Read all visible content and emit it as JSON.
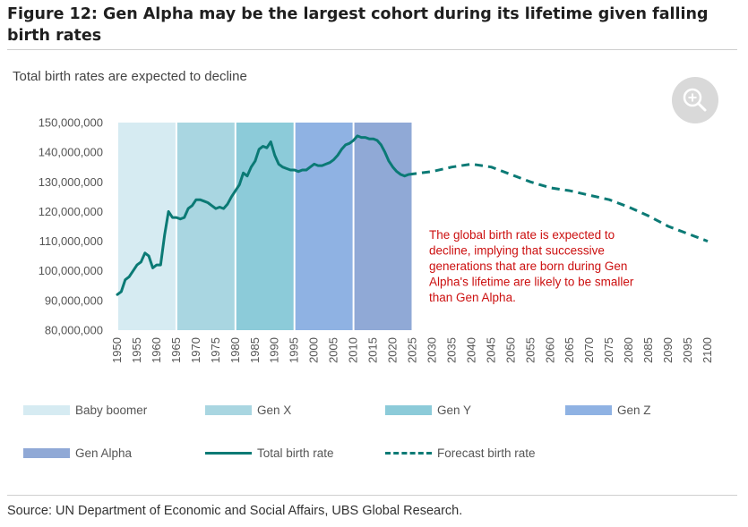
{
  "figure": {
    "title": "Figure 12: Gen Alpha may be the largest cohort during its lifetime given falling birth rates",
    "subtitle": "Total birth rates are expected to decline",
    "source": "Source: UN Department of Economic and Social Affairs, UBS Global Research.",
    "zoom_icon": "zoom-in-icon"
  },
  "chart_data": {
    "type": "line",
    "ylim": [
      80000000,
      150000000
    ],
    "xlim": [
      1950,
      2100
    ],
    "y_ticks": [
      "80,000,000",
      "90,000,000",
      "100,000,000",
      "110,000,000",
      "120,000,000",
      "130,000,000",
      "140,000,000",
      "150,000,000"
    ],
    "x_ticks": [
      "1950",
      "1955",
      "1960",
      "1965",
      "1970",
      "1975",
      "1980",
      "1985",
      "1990",
      "1995",
      "2000",
      "2005",
      "2010",
      "2015",
      "2020",
      "2025",
      "2030",
      "2035",
      "2040",
      "2045",
      "2050",
      "2055",
      "2060",
      "2065",
      "2070",
      "2075",
      "2080",
      "2085",
      "2090",
      "2095",
      "2100"
    ],
    "grid": false,
    "legend_position": "bottom",
    "generations": [
      {
        "name": "Baby boomer",
        "start": 1950,
        "end": 1964,
        "color": "#d6ebf2"
      },
      {
        "name": "Gen X",
        "start": 1965,
        "end": 1979,
        "color": "#a9d6e1"
      },
      {
        "name": "Gen Y",
        "start": 1980,
        "end": 1994,
        "color": "#8ccbd9"
      },
      {
        "name": "Gen Z",
        "start": 1995,
        "end": 2009,
        "color": "#8fb2e3"
      },
      {
        "name": "Gen Alpha",
        "start": 2010,
        "end": 2024,
        "color": "#90a9d6"
      }
    ],
    "series": [
      {
        "name": "Total birth rate",
        "color": "#0b7a75",
        "style": "solid",
        "points": [
          [
            1950,
            92000000
          ],
          [
            1951,
            93000000
          ],
          [
            1952,
            97000000
          ],
          [
            1953,
            98000000
          ],
          [
            1954,
            100000000
          ],
          [
            1955,
            102000000
          ],
          [
            1956,
            103000000
          ],
          [
            1957,
            106000000
          ],
          [
            1958,
            105000000
          ],
          [
            1959,
            101000000
          ],
          [
            1960,
            102000000
          ],
          [
            1961,
            102000000
          ],
          [
            1962,
            112000000
          ],
          [
            1963,
            120000000
          ],
          [
            1964,
            118000000
          ],
          [
            1965,
            118000000
          ],
          [
            1966,
            117500000
          ],
          [
            1967,
            118000000
          ],
          [
            1968,
            121000000
          ],
          [
            1969,
            122000000
          ],
          [
            1970,
            124000000
          ],
          [
            1971,
            124000000
          ],
          [
            1972,
            123500000
          ],
          [
            1973,
            123000000
          ],
          [
            1974,
            122000000
          ],
          [
            1975,
            121000000
          ],
          [
            1976,
            121500000
          ],
          [
            1977,
            121000000
          ],
          [
            1978,
            122500000
          ],
          [
            1979,
            125000000
          ],
          [
            1980,
            127000000
          ],
          [
            1981,
            129000000
          ],
          [
            1982,
            133000000
          ],
          [
            1983,
            132000000
          ],
          [
            1984,
            135000000
          ],
          [
            1985,
            137000000
          ],
          [
            1986,
            141000000
          ],
          [
            1987,
            142000000
          ],
          [
            1988,
            141500000
          ],
          [
            1989,
            143500000
          ],
          [
            1990,
            139000000
          ],
          [
            1991,
            136000000
          ],
          [
            1992,
            135000000
          ],
          [
            1993,
            134500000
          ],
          [
            1994,
            134000000
          ],
          [
            1995,
            134000000
          ],
          [
            1996,
            133500000
          ],
          [
            1997,
            134000000
          ],
          [
            1998,
            134000000
          ],
          [
            1999,
            135000000
          ],
          [
            2000,
            136000000
          ],
          [
            2001,
            135500000
          ],
          [
            2002,
            135500000
          ],
          [
            2003,
            136000000
          ],
          [
            2004,
            136500000
          ],
          [
            2005,
            137500000
          ],
          [
            2006,
            139000000
          ],
          [
            2007,
            141000000
          ],
          [
            2008,
            142500000
          ],
          [
            2009,
            143000000
          ],
          [
            2010,
            144000000
          ],
          [
            2011,
            145500000
          ],
          [
            2012,
            145000000
          ],
          [
            2013,
            145000000
          ],
          [
            2014,
            144500000
          ],
          [
            2015,
            144500000
          ],
          [
            2016,
            144000000
          ],
          [
            2017,
            142500000
          ],
          [
            2018,
            140000000
          ],
          [
            2019,
            137000000
          ],
          [
            2020,
            135000000
          ],
          [
            2021,
            133500000
          ],
          [
            2022,
            132500000
          ],
          [
            2023,
            132000000
          ],
          [
            2024,
            132500000
          ]
        ]
      },
      {
        "name": "Forecast birth rate",
        "color": "#0b7a75",
        "style": "dashed",
        "points": [
          [
            2024,
            132500000
          ],
          [
            2030,
            133500000
          ],
          [
            2035,
            135000000
          ],
          [
            2040,
            136000000
          ],
          [
            2045,
            135000000
          ],
          [
            2050,
            132500000
          ],
          [
            2055,
            130000000
          ],
          [
            2060,
            128000000
          ],
          [
            2065,
            127000000
          ],
          [
            2070,
            125500000
          ],
          [
            2075,
            124000000
          ],
          [
            2080,
            121500000
          ],
          [
            2085,
            118500000
          ],
          [
            2090,
            115000000
          ],
          [
            2095,
            112500000
          ],
          [
            2100,
            110000000
          ]
        ]
      }
    ],
    "annotation": {
      "text": [
        "The global birth rate is expected to",
        "decline, implying that successive",
        "generations that are born during Gen",
        "Alpha's lifetime are likely to be smaller",
        "than Gen Alpha."
      ],
      "color": "#cc1010"
    }
  },
  "legend": {
    "items": [
      {
        "label": "Baby boomer",
        "type": "box",
        "color": "#d6ebf2"
      },
      {
        "label": "Gen X",
        "type": "box",
        "color": "#a9d6e1"
      },
      {
        "label": "Gen Y",
        "type": "box",
        "color": "#8ccbd9"
      },
      {
        "label": "Gen Z",
        "type": "box",
        "color": "#8fb2e3"
      },
      {
        "label": "Gen Alpha",
        "type": "box",
        "color": "#90a9d6"
      },
      {
        "label": "Total birth rate",
        "type": "line",
        "color": "#0b7a75"
      },
      {
        "label": "Forecast birth rate",
        "type": "dash",
        "color": "#0b7a75"
      }
    ]
  }
}
